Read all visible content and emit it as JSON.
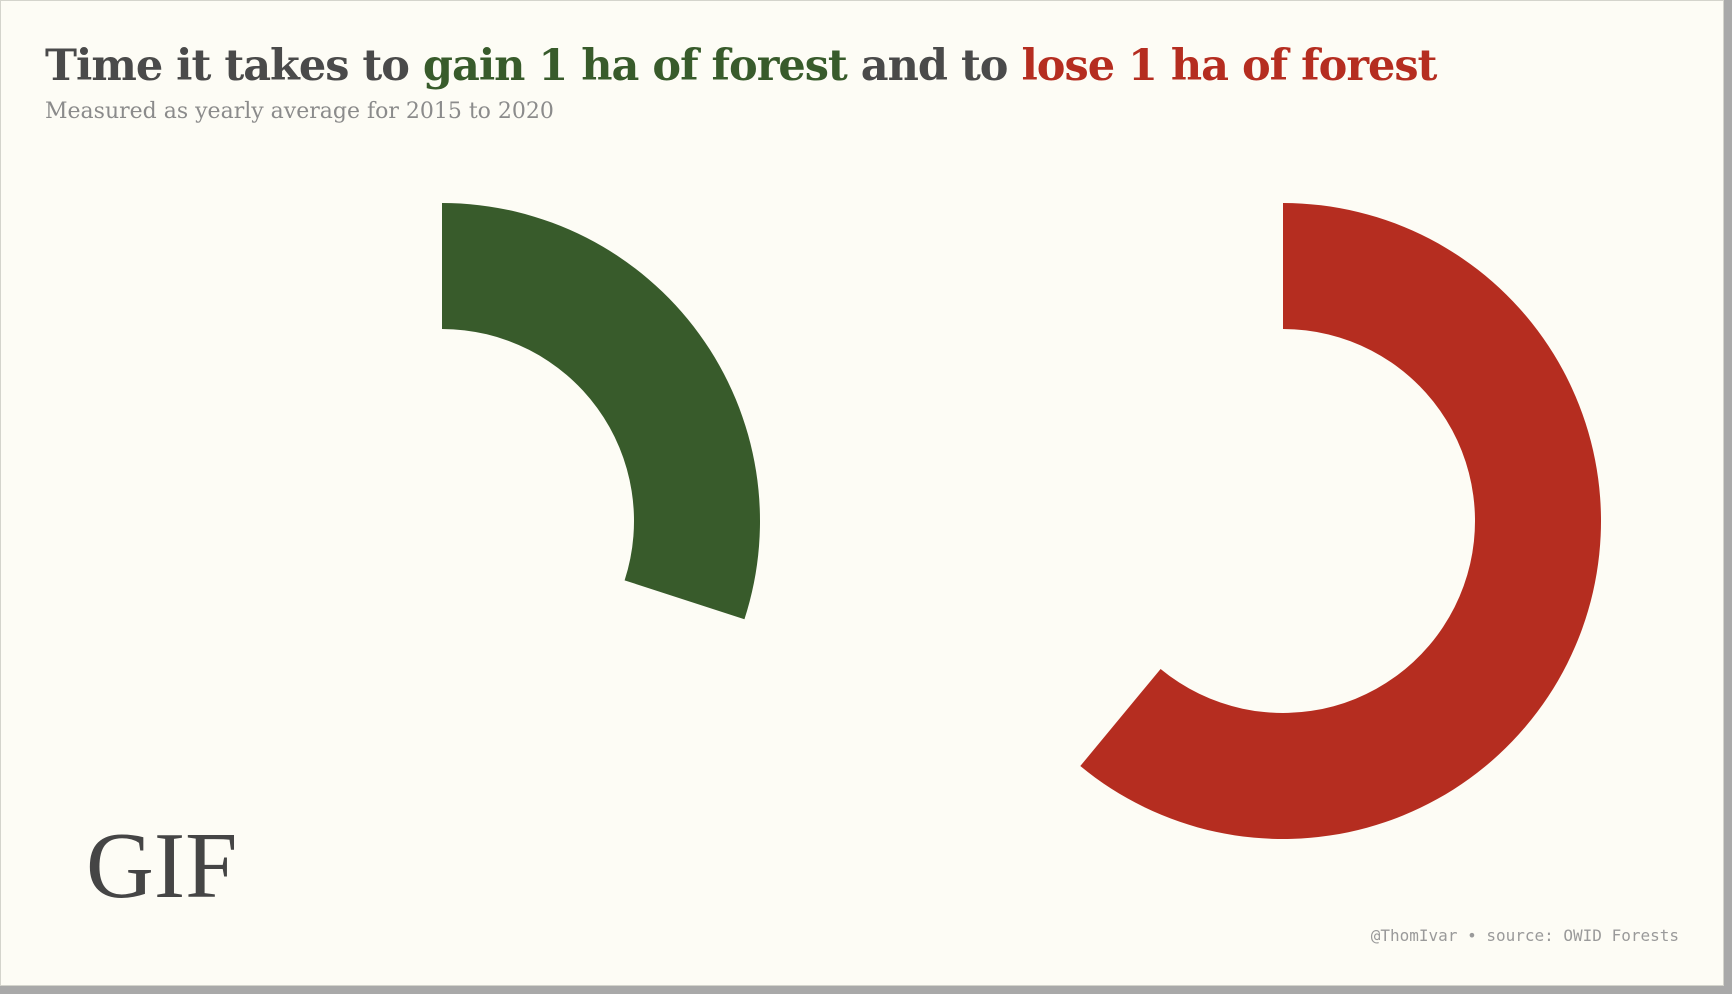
{
  "title": {
    "part1": "Time it takes to ",
    "part2": "gain 1 ha of forest",
    "part3": " and to ",
    "part4": "lose 1 ha of forest"
  },
  "subtitle": "Measured as yearly average for 2015 to 2020",
  "gif_label": "GIF",
  "credit": "@ThomIvar • source: OWID Forests",
  "colors": {
    "gain": "#385b2b",
    "lose": "#b52d20",
    "background": "#fdfcf5",
    "text": "#4a4a4a"
  },
  "chart_data": {
    "type": "radial-progress",
    "series": [
      {
        "name": "gain 1 ha of forest",
        "fraction": 0.3,
        "color": "#385b2b"
      },
      {
        "name": "lose 1 ha of forest",
        "fraction": 0.61,
        "color": "#b52d20"
      }
    ]
  }
}
